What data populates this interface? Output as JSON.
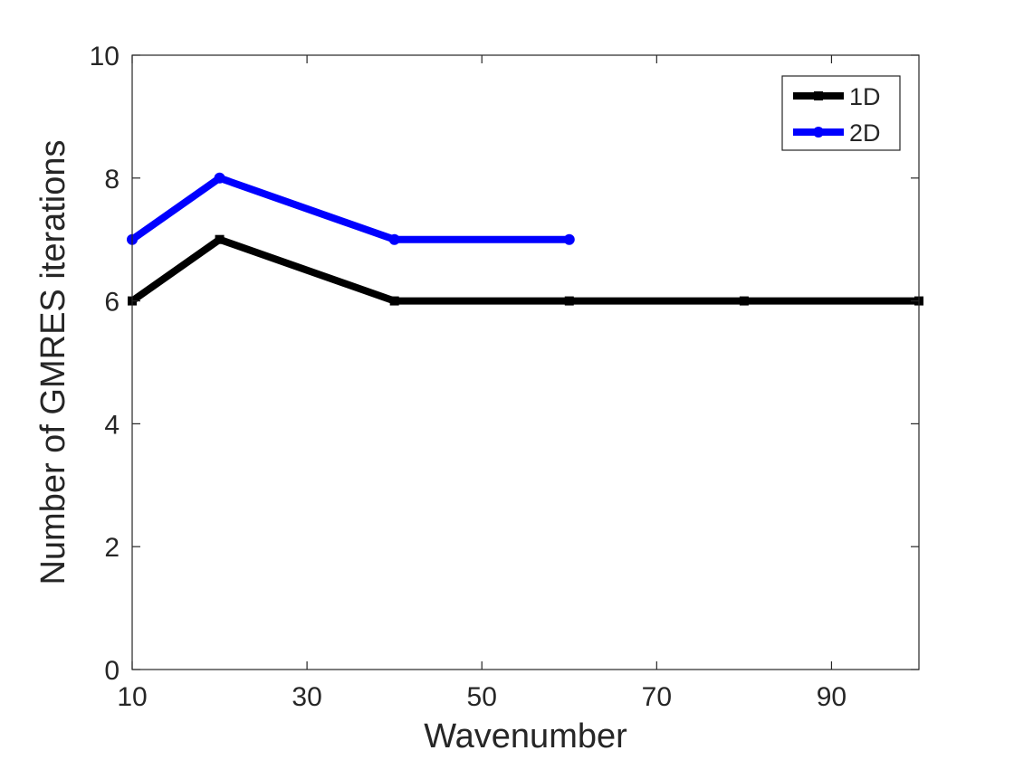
{
  "chart_data": {
    "type": "line",
    "title": "",
    "xlabel": "Wavenumber",
    "ylabel": "Number of GMRES iterations",
    "xlim": [
      10,
      100
    ],
    "ylim": [
      0,
      10
    ],
    "xticks": [
      10,
      30,
      50,
      70,
      90
    ],
    "yticks": [
      0,
      2,
      4,
      6,
      8,
      10
    ],
    "grid": false,
    "legend_position": "top-right",
    "series": [
      {
        "name": "1D",
        "color": "#000000",
        "x": [
          10,
          20,
          40,
          60,
          80,
          100
        ],
        "y": [
          6,
          7,
          6,
          6,
          6,
          6
        ]
      },
      {
        "name": "2D",
        "color": "#0000ff",
        "x": [
          10,
          20,
          40,
          60
        ],
        "y": [
          7,
          8,
          7,
          7
        ]
      }
    ]
  }
}
